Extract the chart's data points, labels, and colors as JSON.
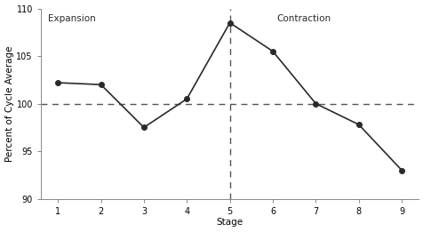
{
  "x": [
    1,
    2,
    3,
    4,
    5,
    6,
    7,
    8,
    9
  ],
  "y": [
    102.2,
    102.0,
    97.5,
    100.5,
    108.5,
    105.5,
    100.0,
    97.8,
    93.0
  ],
  "xlabel": "Stage",
  "ylabel": "Percent of Cycle Average",
  "ylim": [
    90,
    110
  ],
  "yticks": [
    90,
    95,
    100,
    105,
    110
  ],
  "xticks": [
    1,
    2,
    3,
    4,
    5,
    6,
    7,
    8,
    9
  ],
  "hline_y": 100,
  "vline_x": 5,
  "expansion_label": "Expansion",
  "contraction_label": "Contraction",
  "line_color": "#2a2a2a",
  "dashed_color": "#555555",
  "marker": "o",
  "marker_size": 4,
  "linewidth": 1.2,
  "dashes_hline": [
    5,
    4
  ],
  "dashes_vline": [
    5,
    4
  ],
  "background_color": "#ffffff",
  "font_size_labels": 7.5,
  "font_size_annotations": 7.5,
  "font_size_ticks": 7
}
